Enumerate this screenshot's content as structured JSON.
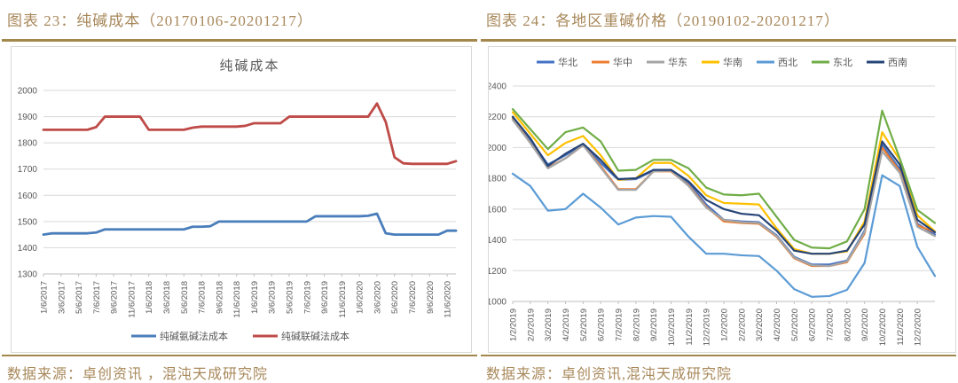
{
  "page": {
    "left": {
      "caption": "图表  23：纯碱成本（20170106-20201217）",
      "source": "数据来源：卓创资讯 ，混沌天成研究院"
    },
    "right": {
      "caption": "图表  24：各地区重碱价格（20190102-20201217）",
      "source": "数据来源：卓创资讯,混沌天成研究院"
    },
    "colors": {
      "caption_gold": "#A8885A",
      "rule_gold": "#A3874C",
      "axis_text": "#595959",
      "gridline": "#D9D9D9",
      "axis_line": "#BFBFBF"
    }
  },
  "chart_data": [
    {
      "type": "line",
      "title": "纯碱成本",
      "legend_position": "bottom",
      "grid": true,
      "ylim": [
        1300,
        2000
      ],
      "yticks": [
        1300,
        1400,
        1500,
        1600,
        1700,
        1800,
        1900,
        2000
      ],
      "categories": [
        "1/6/2017",
        "3/6/2017",
        "5/6/2017",
        "7/6/2017",
        "9/6/2017",
        "11/6/2017",
        "1/6/2018",
        "3/6/2018",
        "5/6/2018",
        "7/6/2018",
        "9/6/2018",
        "11/6/2018",
        "1/6/2019",
        "3/6/2019",
        "5/6/2019",
        "7/6/2019",
        "9/6/2019",
        "11/6/2019",
        "1/6/2020",
        "3/6/2020",
        "5/6/2020",
        "7/6/2020",
        "9/6/2020",
        "11/6/2020"
      ],
      "points_per_tick": 2,
      "series": [
        {
          "name": "纯碱氨碱法成本",
          "color": "#4A7EBB",
          "values": [
            1450,
            1455,
            1455,
            1455,
            1455,
            1455,
            1458,
            1470,
            1470,
            1470,
            1470,
            1470,
            1470,
            1470,
            1470,
            1470,
            1470,
            1480,
            1480,
            1482,
            1500,
            1500,
            1500,
            1500,
            1500,
            1500,
            1500,
            1500,
            1500,
            1500,
            1500,
            1520,
            1520,
            1520,
            1520,
            1520,
            1520,
            1522,
            1530,
            1455,
            1450,
            1450,
            1450,
            1450,
            1450,
            1450,
            1465,
            1465
          ]
        },
        {
          "name": "纯碱联碱法成本",
          "color": "#BE4B48",
          "values": [
            1850,
            1850,
            1850,
            1850,
            1850,
            1850,
            1860,
            1900,
            1900,
            1900,
            1900,
            1900,
            1850,
            1850,
            1850,
            1850,
            1850,
            1858,
            1862,
            1862,
            1862,
            1862,
            1862,
            1865,
            1875,
            1875,
            1875,
            1875,
            1900,
            1900,
            1900,
            1900,
            1900,
            1900,
            1900,
            1900,
            1900,
            1900,
            1950,
            1880,
            1745,
            1722,
            1720,
            1720,
            1720,
            1720,
            1720,
            1730
          ]
        }
      ]
    },
    {
      "type": "line",
      "title": "",
      "legend_position": "top",
      "grid": true,
      "ylim": [
        1000,
        2400
      ],
      "yticks": [
        1000,
        1200,
        1400,
        1600,
        1800,
        2000,
        2200,
        2400
      ],
      "categories": [
        "1/2/2019",
        "2/2/2019",
        "3/2/2019",
        "4/2/2019",
        "5/2/2019",
        "6/2/2019",
        "7/2/2019",
        "8/2/2019",
        "9/2/2019",
        "10/2/2019",
        "11/2/2019",
        "12/2/2019",
        "1/2/2020",
        "2/2/2020",
        "3/2/2020",
        "4/2/2020",
        "5/2/2020",
        "6/2/2020",
        "7/2/2020",
        "8/2/2020",
        "9/2/2020",
        "10/2/2020",
        "11/2/2020",
        "12/2/2020"
      ],
      "points_per_tick": 1,
      "series": [
        {
          "name": "华北",
          "color": "#4472C4",
          "values": [
            2200,
            2050,
            1890,
            1950,
            2020,
            1900,
            1790,
            1795,
            1850,
            1850,
            1770,
            1630,
            1530,
            1520,
            1515,
            1430,
            1290,
            1240,
            1240,
            1265,
            1460,
            2020,
            1860,
            1505,
            1435
          ]
        },
        {
          "name": "华中",
          "color": "#ED7D31",
          "values": [
            2190,
            2030,
            1870,
            1930,
            2015,
            1880,
            1730,
            1730,
            1845,
            1845,
            1755,
            1615,
            1520,
            1510,
            1505,
            1420,
            1280,
            1230,
            1230,
            1255,
            1440,
            2000,
            1845,
            1495,
            1450
          ]
        },
        {
          "name": "华东",
          "color": "#A5A5A5",
          "values": [
            2180,
            2030,
            1865,
            1930,
            2015,
            1870,
            1725,
            1725,
            1845,
            1850,
            1750,
            1610,
            1530,
            1515,
            1510,
            1425,
            1285,
            1235,
            1230,
            1260,
            1450,
            1975,
            1835,
            1485,
            1425
          ]
        },
        {
          "name": "华南",
          "color": "#FFC000",
          "values": [
            2230,
            2090,
            1950,
            2030,
            2075,
            1950,
            1790,
            1800,
            1900,
            1900,
            1815,
            1690,
            1640,
            1635,
            1630,
            1475,
            1340,
            1310,
            1310,
            1325,
            1520,
            2100,
            1920,
            1560,
            1455
          ]
        },
        {
          "name": "西北",
          "color": "#5B9BD5",
          "values": [
            1830,
            1750,
            1590,
            1600,
            1700,
            1610,
            1500,
            1545,
            1555,
            1550,
            1420,
            1310,
            1310,
            1300,
            1295,
            1200,
            1080,
            1030,
            1035,
            1075,
            1250,
            1820,
            1750,
            1355,
            1165
          ]
        },
        {
          "name": "东北",
          "color": "#70AD47",
          "values": [
            2250,
            2120,
            1990,
            2100,
            2130,
            2040,
            1850,
            1855,
            1920,
            1920,
            1865,
            1740,
            1695,
            1690,
            1700,
            1550,
            1400,
            1350,
            1345,
            1390,
            1600,
            2240,
            1930,
            1595,
            1510
          ]
        },
        {
          "name": "西南",
          "color": "#264478",
          "values": [
            2200,
            2060,
            1880,
            1960,
            2025,
            1920,
            1795,
            1800,
            1855,
            1855,
            1780,
            1660,
            1600,
            1570,
            1560,
            1460,
            1330,
            1310,
            1310,
            1330,
            1500,
            2040,
            1890,
            1530,
            1450
          ]
        }
      ]
    }
  ]
}
